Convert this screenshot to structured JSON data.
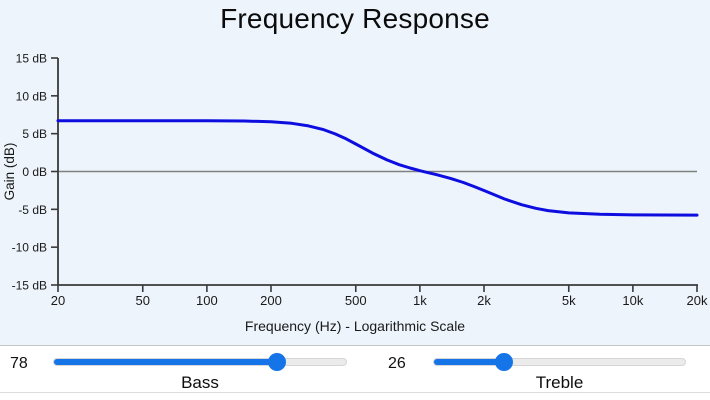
{
  "chart_data": {
    "type": "line",
    "title": "Frequency Response",
    "xlabel": "Frequency (Hz) - Logarithmic Scale",
    "ylabel": "Gain (dB)",
    "x_scale": "logarithmic",
    "xlim": [
      20,
      20000
    ],
    "ylim": [
      -15,
      15
    ],
    "grid": false,
    "zero_line_value": 0,
    "x_ticks": [
      {
        "label": "20",
        "value": 20
      },
      {
        "label": "50",
        "value": 50
      },
      {
        "label": "100",
        "value": 100
      },
      {
        "label": "200",
        "value": 200
      },
      {
        "label": "500",
        "value": 500
      },
      {
        "label": "1k",
        "value": 1000
      },
      {
        "label": "2k",
        "value": 2000
      },
      {
        "label": "5k",
        "value": 5000
      },
      {
        "label": "10k",
        "value": 10000
      },
      {
        "label": "20k",
        "value": 20000
      }
    ],
    "y_ticks": [
      {
        "label": "15 dB",
        "value": 15
      },
      {
        "label": "10 dB",
        "value": 10
      },
      {
        "label": "5 dB",
        "value": 5
      },
      {
        "label": "0 dB",
        "value": 0
      },
      {
        "label": "-5 dB",
        "value": -5
      },
      {
        "label": "-10 dB",
        "value": -10
      },
      {
        "label": "-15 dB",
        "value": -15
      }
    ],
    "series": [
      {
        "name": "frequency-response-curve",
        "color": "#0d0de0",
        "points": [
          [
            20,
            6.72
          ],
          [
            30,
            6.72
          ],
          [
            50,
            6.72
          ],
          [
            70,
            6.72
          ],
          [
            100,
            6.71
          ],
          [
            150,
            6.67
          ],
          [
            200,
            6.57
          ],
          [
            250,
            6.37
          ],
          [
            300,
            6.03
          ],
          [
            350,
            5.57
          ],
          [
            400,
            4.97
          ],
          [
            450,
            4.32
          ],
          [
            500,
            3.64
          ],
          [
            600,
            2.43
          ],
          [
            700,
            1.53
          ],
          [
            800,
            0.9
          ],
          [
            900,
            0.46
          ],
          [
            1000,
            0.11
          ],
          [
            1100,
            -0.17
          ],
          [
            1200,
            -0.42
          ],
          [
            1400,
            -0.94
          ],
          [
            1600,
            -1.45
          ],
          [
            1800,
            -1.99
          ],
          [
            2000,
            -2.51
          ],
          [
            2500,
            -3.63
          ],
          [
            3000,
            -4.39
          ],
          [
            3500,
            -4.87
          ],
          [
            4000,
            -5.17
          ],
          [
            5000,
            -5.47
          ],
          [
            7000,
            -5.66
          ],
          [
            10000,
            -5.73
          ],
          [
            14000,
            -5.75
          ],
          [
            20000,
            -5.76
          ]
        ]
      }
    ]
  },
  "controls": {
    "bass": {
      "label": "Bass",
      "value": 78,
      "min": 0,
      "max": 100
    },
    "treble": {
      "label": "Treble",
      "value": 26,
      "min": 0,
      "max": 100
    }
  },
  "colors": {
    "chart_background": "#edf4fb",
    "curve": "#0d0de0",
    "zero_line": "#808080",
    "axis": "#3a3a3a",
    "slider_accent": "#1574e8",
    "slider_track": "#ebebeb"
  }
}
